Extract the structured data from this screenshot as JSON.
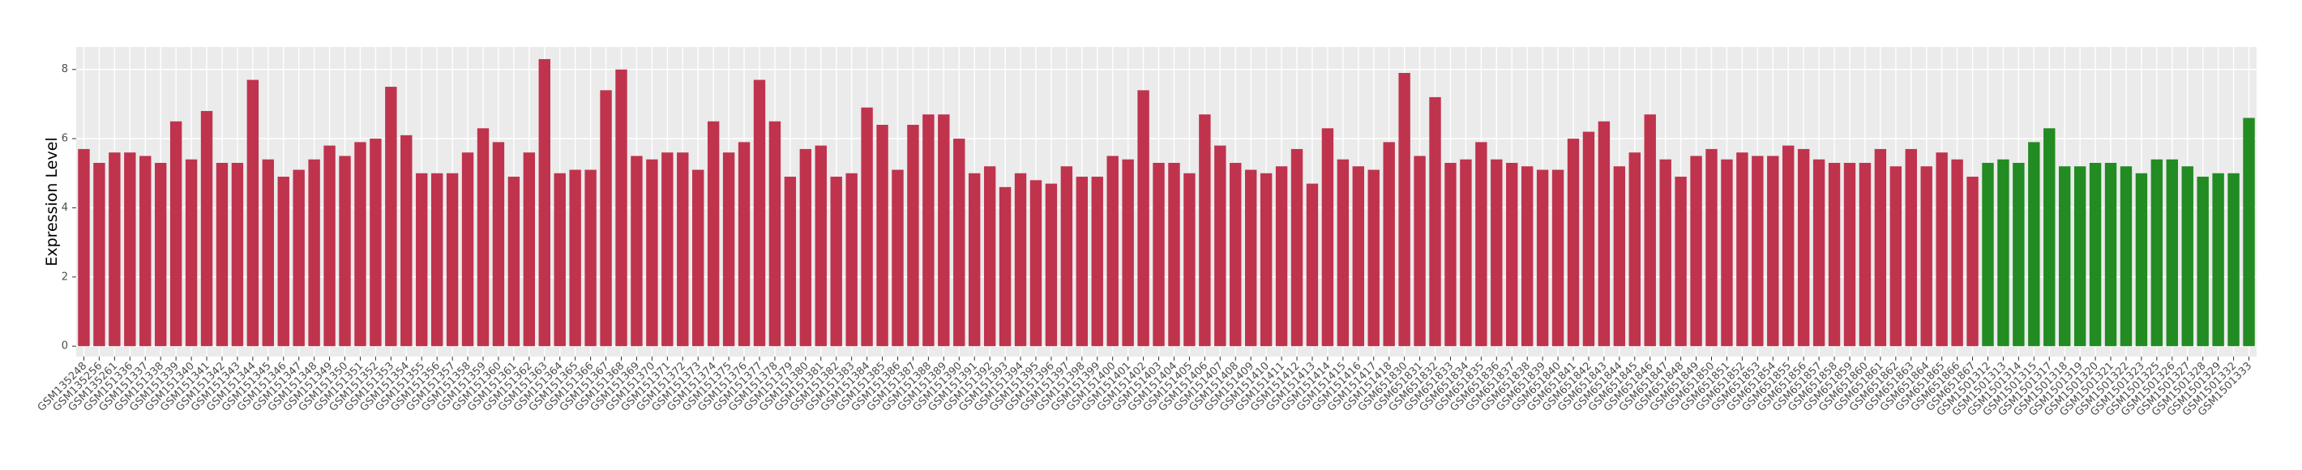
{
  "chart_data": {
    "type": "bar",
    "y_label": "Expression Level",
    "categories": [
      "GSM135248",
      "GSM135256",
      "GSM135261",
      "GSM151336",
      "GSM151337",
      "GSM151338",
      "GSM151339",
      "GSM151340",
      "GSM151341",
      "GSM151342",
      "GSM151343",
      "GSM151344",
      "GSM151345",
      "GSM151346",
      "GSM151347",
      "GSM151348",
      "GSM151349",
      "GSM151350",
      "GSM151351",
      "GSM151352",
      "GSM151353",
      "GSM151354",
      "GSM151355",
      "GSM151356",
      "GSM151357",
      "GSM151358",
      "GSM151359",
      "GSM151360",
      "GSM151361",
      "GSM151362",
      "GSM151363",
      "GSM151364",
      "GSM151365",
      "GSM151366",
      "GSM151367",
      "GSM151368",
      "GSM151369",
      "GSM151370",
      "GSM151371",
      "GSM151372",
      "GSM151373",
      "GSM151374",
      "GSM151375",
      "GSM151376",
      "GSM151377",
      "GSM151378",
      "GSM151379",
      "GSM151380",
      "GSM151381",
      "GSM151382",
      "GSM151383",
      "GSM151384",
      "GSM151385",
      "GSM151386",
      "GSM151387",
      "GSM151388",
      "GSM151389",
      "GSM151390",
      "GSM151391",
      "GSM151392",
      "GSM151393",
      "GSM151394",
      "GSM151395",
      "GSM151396",
      "GSM151397",
      "GSM151398",
      "GSM151399",
      "GSM151400",
      "GSM151401",
      "GSM151402",
      "GSM151403",
      "GSM151404",
      "GSM151405",
      "GSM151406",
      "GSM151407",
      "GSM151408",
      "GSM151409",
      "GSM151410",
      "GSM151411",
      "GSM151412",
      "GSM151413",
      "GSM151414",
      "GSM151415",
      "GSM151416",
      "GSM151417",
      "GSM151418",
      "GSM651830",
      "GSM651831",
      "GSM651832",
      "GSM651833",
      "GSM651834",
      "GSM651835",
      "GSM651836",
      "GSM651837",
      "GSM651838",
      "GSM651839",
      "GSM651840",
      "GSM651841",
      "GSM651842",
      "GSM651843",
      "GSM651844",
      "GSM651845",
      "GSM651846",
      "GSM651847",
      "GSM651848",
      "GSM651849",
      "GSM651850",
      "GSM651851",
      "GSM651852",
      "GSM651853",
      "GSM651854",
      "GSM651855",
      "GSM651856",
      "GSM651857",
      "GSM651858",
      "GSM651859",
      "GSM651860",
      "GSM651861",
      "GSM651862",
      "GSM651863",
      "GSM651864",
      "GSM651865",
      "GSM651866",
      "GSM651867",
      "GSM1501312",
      "GSM1501313",
      "GSM1501314",
      "GSM1501315",
      "GSM1501317",
      "GSM1501318",
      "GSM1501319",
      "GSM1501320",
      "GSM1501321",
      "GSM1501322",
      "GSM1501323",
      "GSM1501325",
      "GSM1501326",
      "GSM1501327",
      "GSM1501328",
      "GSM1501329",
      "GSM1501332",
      "GSM1501333"
    ],
    "values": [
      5.7,
      5.3,
      5.6,
      5.6,
      5.5,
      5.3,
      6.5,
      5.4,
      6.8,
      5.3,
      5.3,
      7.7,
      5.4,
      4.9,
      5.1,
      5.4,
      5.8,
      5.5,
      5.9,
      6.0,
      7.5,
      6.1,
      5.0,
      5.0,
      5.0,
      5.6,
      6.3,
      5.9,
      4.9,
      5.6,
      8.3,
      5.0,
      5.1,
      5.1,
      7.4,
      8.0,
      5.5,
      5.4,
      5.6,
      5.6,
      5.1,
      6.5,
      5.6,
      5.9,
      7.7,
      6.5,
      4.9,
      5.7,
      5.8,
      4.9,
      5.0,
      6.9,
      6.4,
      5.1,
      6.4,
      6.7,
      6.7,
      6.0,
      5.0,
      5.2,
      4.6,
      5.0,
      4.8,
      4.7,
      5.2,
      4.9,
      4.9,
      5.5,
      5.4,
      7.4,
      5.3,
      5.3,
      5.0,
      6.7,
      5.8,
      5.3,
      5.1,
      5.0,
      5.2,
      5.7,
      4.7,
      6.3,
      5.4,
      5.2,
      5.1,
      5.9,
      7.9,
      5.5,
      7.2,
      5.3,
      5.4,
      5.9,
      5.4,
      5.3,
      5.2,
      5.1,
      5.1,
      6.0,
      6.2,
      6.5,
      5.2,
      5.6,
      6.7,
      5.4,
      4.9,
      5.5,
      5.7,
      5.4,
      5.6,
      5.5,
      5.5,
      5.8,
      5.7,
      5.4,
      5.3,
      5.3,
      5.3,
      5.7,
      5.2,
      5.7,
      5.2,
      5.6,
      5.4,
      4.9,
      5.3,
      5.4,
      5.3,
      5.9,
      6.3,
      5.2,
      5.2,
      5.3,
      5.3,
      5.2,
      5.0,
      5.4,
      5.4,
      5.2,
      4.9,
      5.0,
      5.0,
      6.6
    ],
    "colors": [
      "#c0334d",
      "#c0334d",
      "#c0334d",
      "#c0334d",
      "#c0334d",
      "#c0334d",
      "#c0334d",
      "#c0334d",
      "#c0334d",
      "#c0334d",
      "#c0334d",
      "#c0334d",
      "#c0334d",
      "#c0334d",
      "#c0334d",
      "#c0334d",
      "#c0334d",
      "#c0334d",
      "#c0334d",
      "#c0334d",
      "#c0334d",
      "#c0334d",
      "#c0334d",
      "#c0334d",
      "#c0334d",
      "#c0334d",
      "#c0334d",
      "#c0334d",
      "#c0334d",
      "#c0334d",
      "#c0334d",
      "#c0334d",
      "#c0334d",
      "#c0334d",
      "#c0334d",
      "#c0334d",
      "#c0334d",
      "#c0334d",
      "#c0334d",
      "#c0334d",
      "#c0334d",
      "#c0334d",
      "#c0334d",
      "#c0334d",
      "#c0334d",
      "#c0334d",
      "#c0334d",
      "#c0334d",
      "#c0334d",
      "#c0334d",
      "#c0334d",
      "#c0334d",
      "#c0334d",
      "#c0334d",
      "#c0334d",
      "#c0334d",
      "#c0334d",
      "#c0334d",
      "#c0334d",
      "#c0334d",
      "#c0334d",
      "#c0334d",
      "#c0334d",
      "#c0334d",
      "#c0334d",
      "#c0334d",
      "#c0334d",
      "#c0334d",
      "#c0334d",
      "#c0334d",
      "#c0334d",
      "#c0334d",
      "#c0334d",
      "#c0334d",
      "#c0334d",
      "#c0334d",
      "#c0334d",
      "#c0334d",
      "#c0334d",
      "#c0334d",
      "#c0334d",
      "#c0334d",
      "#c0334d",
      "#c0334d",
      "#c0334d",
      "#c0334d",
      "#c0334d",
      "#c0334d",
      "#c0334d",
      "#c0334d",
      "#c0334d",
      "#c0334d",
      "#c0334d",
      "#c0334d",
      "#c0334d",
      "#c0334d",
      "#c0334d",
      "#c0334d",
      "#c0334d",
      "#c0334d",
      "#c0334d",
      "#c0334d",
      "#c0334d",
      "#c0334d",
      "#c0334d",
      "#c0334d",
      "#c0334d",
      "#c0334d",
      "#c0334d",
      "#c0334d",
      "#c0334d",
      "#c0334d",
      "#c0334d",
      "#c0334d",
      "#c0334d",
      "#c0334d",
      "#c0334d",
      "#c0334d",
      "#c0334d",
      "#c0334d",
      "#c0334d",
      "#c0334d",
      "#c0334d",
      "#c0334d",
      "#228b22",
      "#228b22",
      "#228b22",
      "#228b22",
      "#228b22",
      "#228b22",
      "#228b22",
      "#228b22",
      "#228b22",
      "#228b22",
      "#228b22",
      "#228b22",
      "#228b22",
      "#228b22",
      "#228b22",
      "#228b22",
      "#228b22",
      "#228b22"
    ],
    "ylim": [
      -0.3,
      8.65
    ],
    "yticks": [
      0,
      2,
      4,
      6,
      8
    ],
    "grid": true
  }
}
